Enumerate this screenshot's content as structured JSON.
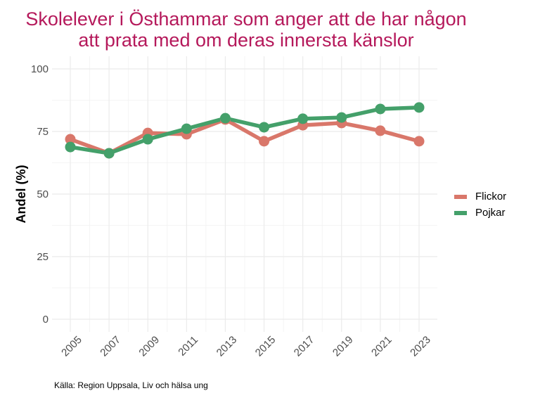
{
  "title_lines": [
    "Skolelever i Östhammar som anger att de har någon",
    "att prata med om deras innersta känslor"
  ],
  "caption": "Källa: Region Uppsala, Liv och hälsa ung",
  "chart_data": {
    "type": "line",
    "title": "Skolelever i Östhammar som anger att de har någon att prata med om deras innersta känslor",
    "xlabel": "",
    "ylabel": "Andel (%)",
    "x": [
      2005,
      2007,
      2009,
      2011,
      2013,
      2015,
      2017,
      2019,
      2021,
      2023
    ],
    "x_tick_labels": [
      "2005",
      "2007",
      "2009",
      "2011",
      "2013",
      "2015",
      "2017",
      "2019",
      "2021",
      "2023"
    ],
    "ylim": [
      0,
      100
    ],
    "y_ticks": [
      0,
      25,
      50,
      75,
      100
    ],
    "y_tick_labels": [
      "0",
      "25",
      "50",
      "75",
      "100"
    ],
    "grid": true,
    "legend_position": "right",
    "series": [
      {
        "name": "Flickor",
        "color": "#d9776a",
        "values": [
          71.9,
          66.3,
          74.4,
          73.9,
          79.8,
          71.1,
          77.5,
          78.4,
          75.3,
          71.1
        ]
      },
      {
        "name": "Pojkar",
        "color": "#44a06a",
        "values": [
          68.8,
          66.3,
          71.9,
          76.1,
          80.3,
          76.7,
          80.1,
          80.6,
          84.0,
          84.6
        ]
      }
    ]
  }
}
